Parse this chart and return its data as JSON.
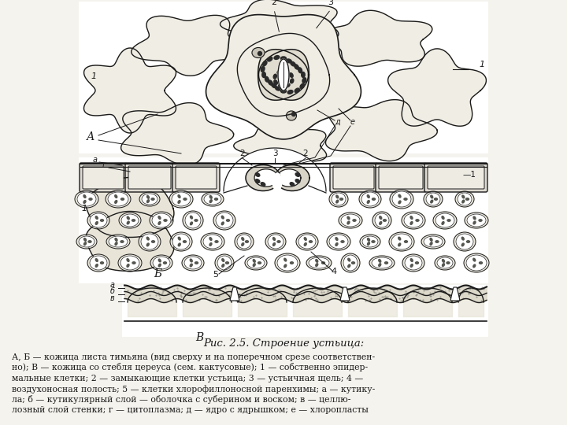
{
  "title": "Рис. 2.5. Строение устьица:",
  "caption_lines": [
    "А, Б — кожица листа тимьяна (вид сверху и на поперечном срезе соответствен-",
    "но); В — кожица со стебля цереуса (сем. кактусовые); 1 — собственно эпидер-",
    "мальные клетки; 2 — замыкающие клетки устьица; 3 — устьичная щель; 4 —",
    "воздухоносная полость; 5 — клетки хлорофиллоносной паренхимы; а — кутику-",
    "ла; б — кутикулярный слой — оболочка с суберином и воском; в — целлю-",
    "лозный слой стенки; г — цитоплазма; д — ядро с ядрышком; е — хлоропласты"
  ],
  "bg_color": "#f5f3ee",
  "line_color": "#1a1a1a",
  "cell_fill": "#f0ede4",
  "guard_fill": "#e8e4d8",
  "dark_dot": "#2a2a2a",
  "meso_fill": "#ede9df",
  "cactus_fill": "#c8c4b0",
  "white": "#ffffff",
  "label_color": "#111111"
}
